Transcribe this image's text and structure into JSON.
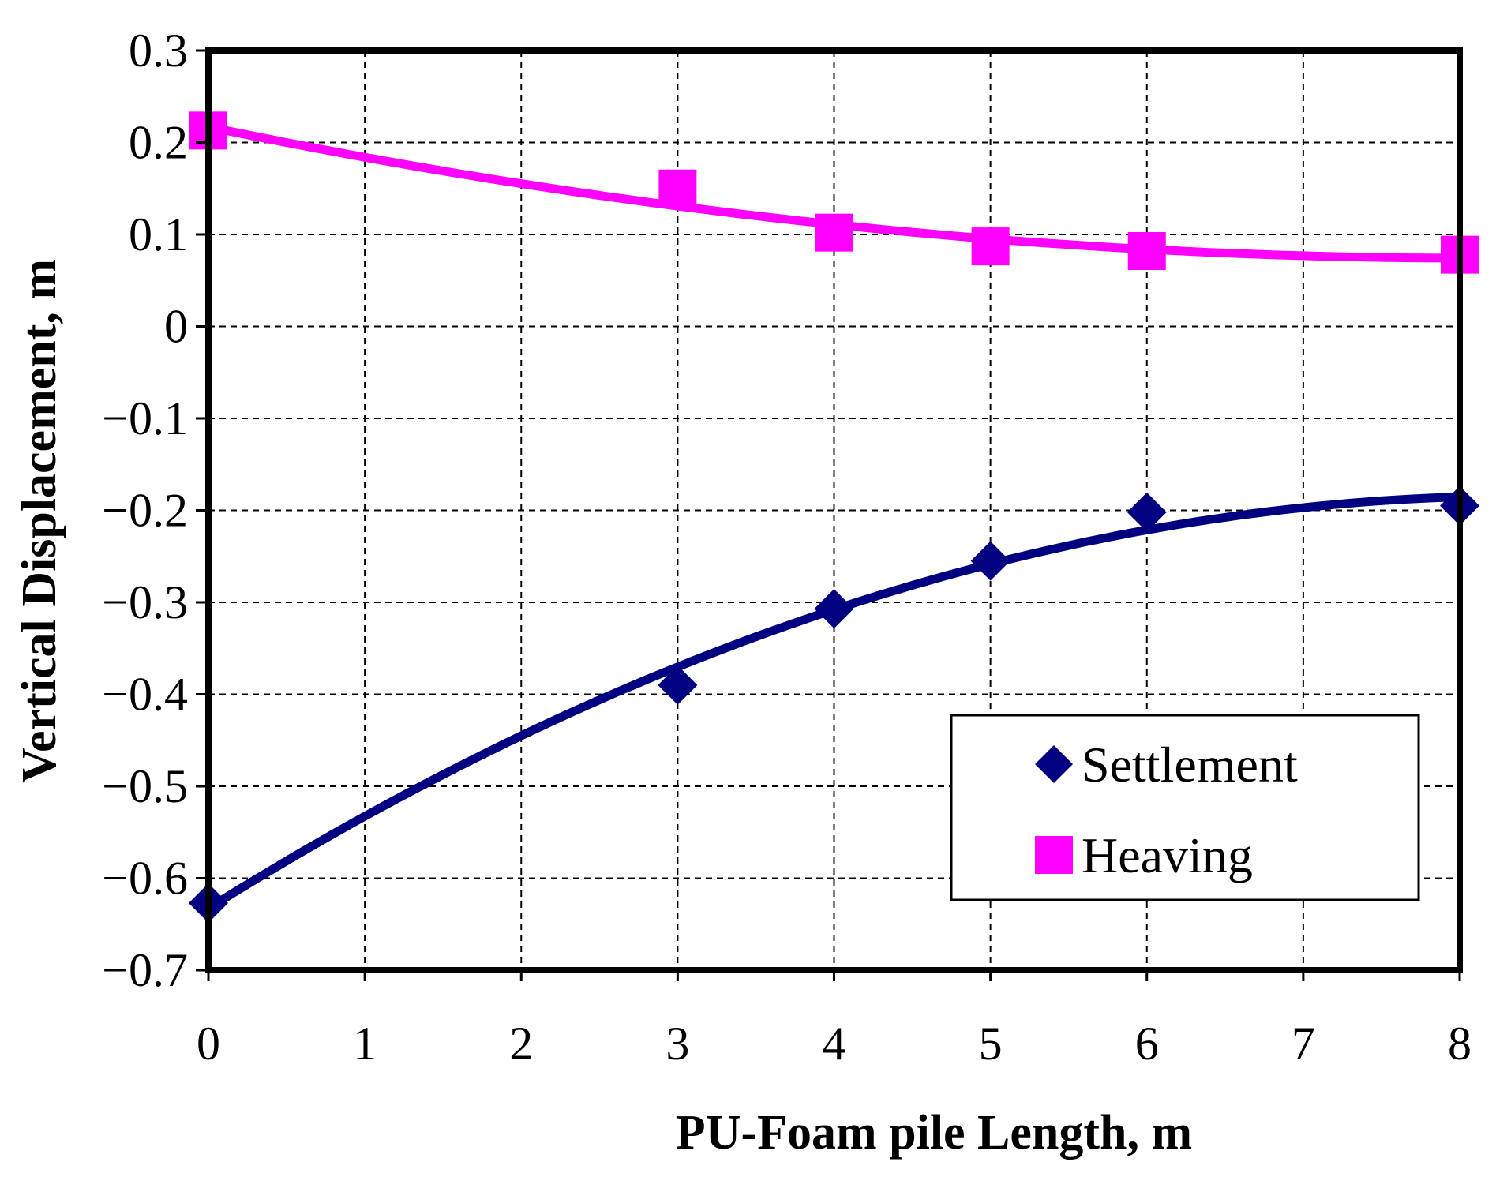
{
  "chart_data": {
    "type": "scatter",
    "title": "",
    "xlabel": "PU-Foam pile Length, m",
    "ylabel": "Vertical Displacement, m",
    "xlim": [
      0,
      8
    ],
    "ylim": [
      -0.7,
      0.3
    ],
    "xticks": [
      "0",
      "1",
      "2",
      "3",
      "4",
      "5",
      "6",
      "7",
      "8"
    ],
    "yticks": [
      "0.3",
      "0.2",
      "0.1",
      "0",
      "−0.1",
      "−0.2",
      "−0.3",
      "−0.4",
      "−0.5",
      "−0.6",
      "−0.7"
    ],
    "grid": true,
    "legend_position": "bottom-right",
    "series": [
      {
        "name": "Settlement",
        "marker": "diamond",
        "color": "#000080",
        "x": [
          0,
          3,
          4,
          5,
          6,
          8
        ],
        "y": [
          -0.627,
          -0.39,
          -0.307,
          -0.255,
          -0.202,
          -0.195
        ],
        "trendline": "polynomial"
      },
      {
        "name": "Heaving",
        "marker": "square",
        "color": "#ff00ff",
        "x": [
          0,
          3,
          4,
          5,
          6,
          8
        ],
        "y": [
          0.213,
          0.15,
          0.102,
          0.087,
          0.082,
          0.078
        ],
        "trendline": "polynomial"
      }
    ]
  }
}
